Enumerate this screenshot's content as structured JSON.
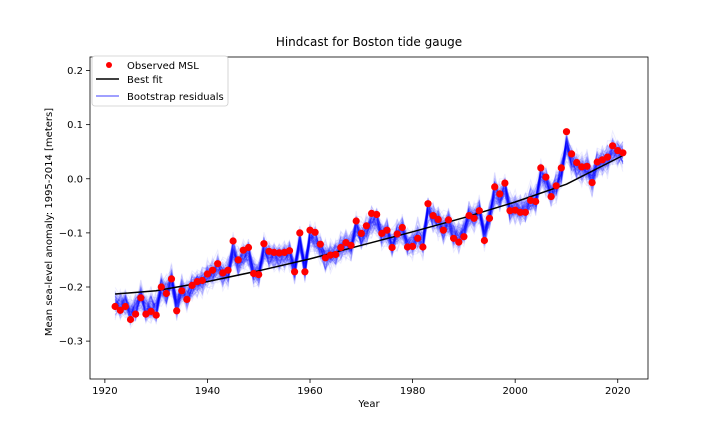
{
  "chart_data": {
    "type": "scatter",
    "title": "Hindcast for Boston tide gauge",
    "xlabel": "Year",
    "ylabel": "Mean sea-level anomaly: 1995-2014 [meters]",
    "xlim": [
      1917.1,
      2025.9
    ],
    "ylim": [
      -0.37,
      0.225
    ],
    "xticks": [
      1920,
      1940,
      1960,
      1980,
      2000,
      2020
    ],
    "yticks": [
      -0.3,
      -0.2,
      -0.1,
      0.0,
      0.1,
      0.2
    ],
    "ytick_labels": [
      "−0.3",
      "−0.2",
      "−0.1",
      "0.0",
      "0.1",
      "0.2"
    ],
    "grid": false,
    "legend_position": "top-left",
    "legend": [
      {
        "label": "Observed MSL",
        "marker": "dot",
        "color": "#ff0000"
      },
      {
        "label": "Best fit",
        "marker": "line",
        "color": "#000000"
      },
      {
        "label": "Bootstrap residuals",
        "marker": "line",
        "color": "#8080ff"
      }
    ],
    "colors": {
      "observed": "#ff0000",
      "fit": "#000000",
      "bootstrap": "#0000ff"
    },
    "series": [
      {
        "name": "Observed MSL",
        "x": [
          1922,
          1923,
          1924,
          1925,
          1926,
          1927,
          1928,
          1929,
          1930,
          1931,
          1932,
          1933,
          1934,
          1935,
          1936,
          1937,
          1938,
          1939,
          1940,
          1941,
          1942,
          1943,
          1944,
          1945,
          1946,
          1947,
          1948,
          1949,
          1950,
          1951,
          1952,
          1953,
          1954,
          1955,
          1956,
          1957,
          1958,
          1959,
          1960,
          1961,
          1962,
          1963,
          1964,
          1965,
          1966,
          1967,
          1968,
          1969,
          1970,
          1971,
          1972,
          1973,
          1974,
          1975,
          1976,
          1977,
          1978,
          1979,
          1980,
          1981,
          1982,
          1983,
          1984,
          1985,
          1986,
          1987,
          1988,
          1989,
          1990,
          1991,
          1992,
          1993,
          1994,
          1995,
          1996,
          1997,
          1998,
          1999,
          2000,
          2001,
          2002,
          2003,
          2004,
          2005,
          2006,
          2007,
          2008,
          2009,
          2010,
          2011,
          2012,
          2013,
          2014,
          2015,
          2016,
          2017,
          2018,
          2019,
          2020,
          2021
        ],
        "y": [
          -0.236,
          -0.243,
          -0.236,
          -0.26,
          -0.25,
          -0.22,
          -0.25,
          -0.245,
          -0.252,
          -0.2,
          -0.212,
          -0.185,
          -0.244,
          -0.207,
          -0.223,
          -0.197,
          -0.19,
          -0.188,
          -0.176,
          -0.169,
          -0.157,
          -0.174,
          -0.169,
          -0.115,
          -0.15,
          -0.132,
          -0.127,
          -0.175,
          -0.177,
          -0.12,
          -0.134,
          -0.136,
          -0.137,
          -0.136,
          -0.133,
          -0.172,
          -0.1,
          -0.172,
          -0.095,
          -0.099,
          -0.121,
          -0.146,
          -0.141,
          -0.14,
          -0.127,
          -0.118,
          -0.123,
          -0.078,
          -0.101,
          -0.087,
          -0.064,
          -0.066,
          -0.101,
          -0.095,
          -0.127,
          -0.102,
          -0.09,
          -0.126,
          -0.125,
          -0.11,
          -0.126,
          -0.046,
          -0.068,
          -0.075,
          -0.095,
          -0.076,
          -0.11,
          -0.117,
          -0.107,
          -0.068,
          -0.073,
          -0.059,
          -0.114,
          -0.073,
          -0.015,
          -0.028,
          -0.008,
          -0.059,
          -0.058,
          -0.062,
          -0.062,
          -0.04,
          -0.042,
          0.02,
          0.003,
          -0.033,
          -0.013,
          0.02,
          0.087,
          0.046,
          0.03,
          0.022,
          0.023,
          -0.007,
          0.031,
          0.035,
          0.04,
          0.061,
          0.052,
          0.048
        ]
      },
      {
        "name": "Best fit",
        "x": [
          1922,
          1930,
          1940,
          1950,
          1960,
          1970,
          1980,
          1990,
          2000,
          2010,
          2021
        ],
        "y": [
          -0.213,
          -0.207,
          -0.19,
          -0.17,
          -0.148,
          -0.123,
          -0.098,
          -0.072,
          -0.043,
          -0.01,
          0.043
        ]
      }
    ],
    "bootstrap_residuals": {
      "count": 120,
      "opacity": 0.07
    }
  }
}
